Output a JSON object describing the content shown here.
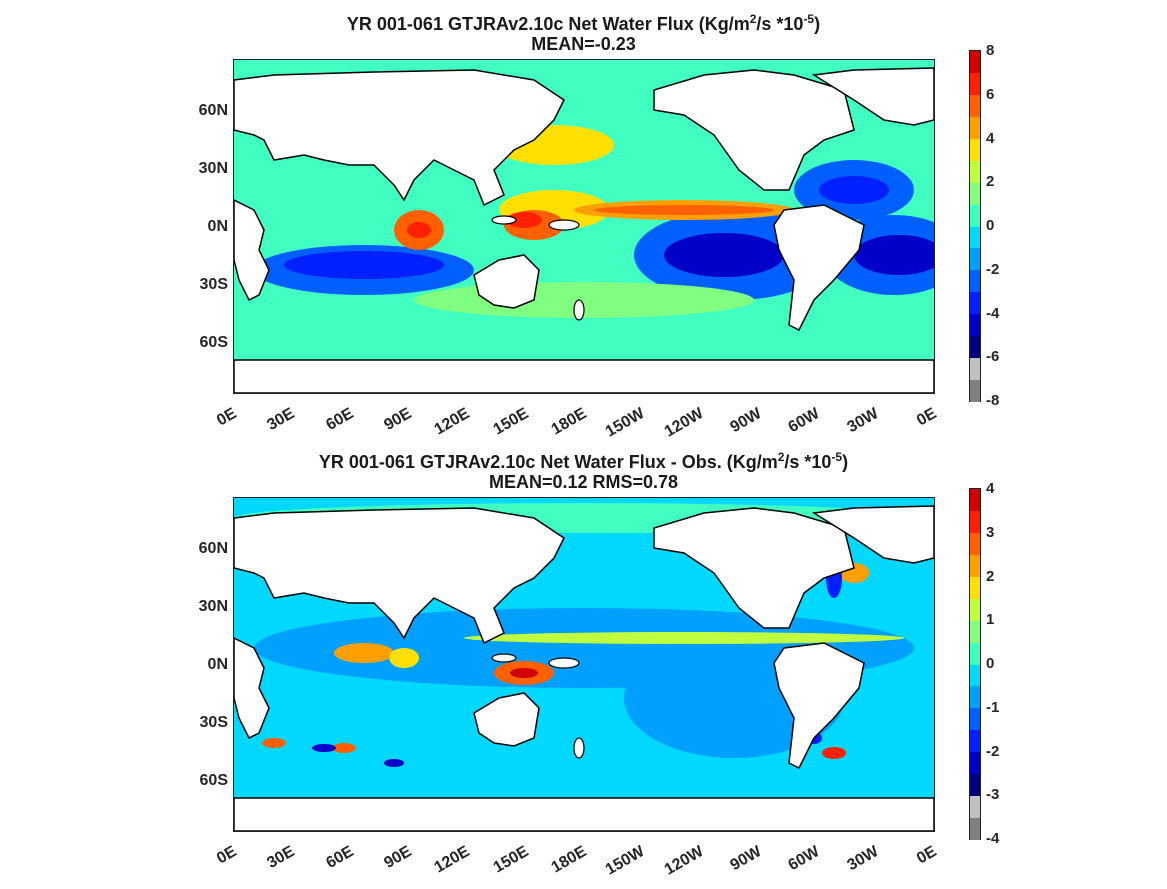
{
  "panels": [
    {
      "title_prefix": "YR 001-061 GTJRAv2.10c  Net Water Flux (Kg/m",
      "title_mid": "/s *10",
      "title_end": ")",
      "subtitle": "MEAN=-0.23",
      "colorbar_ticks": [
        "8",
        "6",
        "4",
        "2",
        "0",
        "-2",
        "-4",
        "-6",
        "-8"
      ]
    },
    {
      "title_prefix": "YR 001-061 GTJRAv2.10c  Net Water Flux - Obs. (Kg/m",
      "title_mid": "/s *10",
      "title_end": ")",
      "subtitle": "MEAN=0.12 RMS=0.78",
      "colorbar_ticks": [
        "4",
        "3",
        "2",
        "1",
        "0",
        "-1",
        "-2",
        "-3",
        "-4"
      ]
    }
  ],
  "superscripts": {
    "m_exp": "2",
    "ten_exp": "-5"
  },
  "lat_labels": [
    "60N",
    "30N",
    "0N",
    "30S",
    "60S"
  ],
  "lon_labels": [
    "0E",
    "30E",
    "60E",
    "90E",
    "120E",
    "150E",
    "180E",
    "150W",
    "120W",
    "90W",
    "60W",
    "30W",
    "0E"
  ],
  "colormap": [
    "#808080",
    "#c0c0c0",
    "#00007f",
    "#0000c8",
    "#0020ff",
    "#0060ff",
    "#00a0ff",
    "#00d8ff",
    "#40ffc0",
    "#80ff80",
    "#c0ff40",
    "#ffe000",
    "#ffa000",
    "#ff6000",
    "#ff2000",
    "#d00000"
  ]
}
